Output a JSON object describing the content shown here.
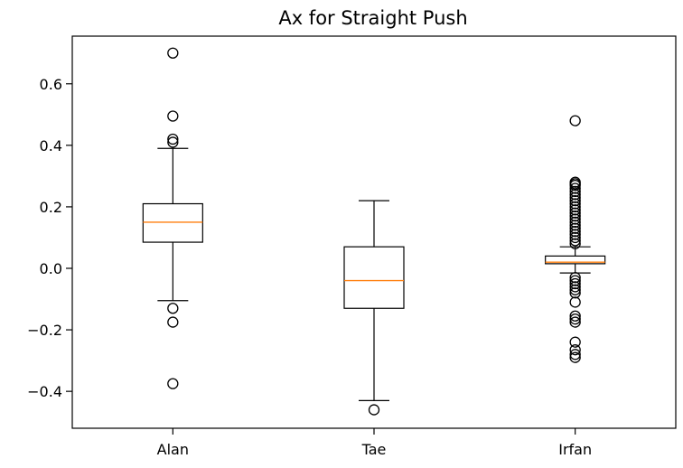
{
  "chart_data": {
    "type": "box",
    "title": "Ax for Straight Push",
    "xlabel": "",
    "ylabel": "",
    "ylim": [
      -0.52,
      0.755
    ],
    "yticks": [
      -0.4,
      -0.2,
      0.0,
      0.2,
      0.4,
      0.6
    ],
    "ytick_labels": [
      "−0.4",
      "−0.2",
      "0.0",
      "0.2",
      "0.4",
      "0.6"
    ],
    "categories": [
      "Alan",
      "Tae",
      "Irfan"
    ],
    "grid": false,
    "colors": {
      "box": "#000000",
      "median": "#ff7f0e",
      "flier": "#000000"
    },
    "boxes": [
      {
        "name": "Alan",
        "whisker_low": -0.105,
        "q1": 0.085,
        "median": 0.15,
        "q3": 0.21,
        "whisker_high": 0.39,
        "fliers": [
          0.7,
          0.495,
          0.42,
          0.41,
          -0.13,
          -0.175,
          -0.375
        ]
      },
      {
        "name": "Tae",
        "whisker_low": -0.43,
        "q1": -0.13,
        "median": -0.04,
        "q3": 0.07,
        "whisker_high": 0.22,
        "fliers": [
          -0.46
        ]
      },
      {
        "name": "Irfan",
        "whisker_low": -0.015,
        "q1": 0.015,
        "median": 0.02,
        "q3": 0.04,
        "whisker_high": 0.07,
        "fliers": [
          0.48,
          0.28,
          0.275,
          0.27,
          0.26,
          0.25,
          0.24,
          0.23,
          0.22,
          0.21,
          0.2,
          0.19,
          0.18,
          0.17,
          0.16,
          0.15,
          0.14,
          0.13,
          0.12,
          0.11,
          0.1,
          0.09,
          0.08,
          -0.03,
          -0.04,
          -0.05,
          -0.06,
          -0.07,
          -0.08,
          -0.11,
          -0.155,
          -0.165,
          -0.175,
          -0.24,
          -0.265,
          -0.28,
          -0.29
        ]
      }
    ]
  }
}
